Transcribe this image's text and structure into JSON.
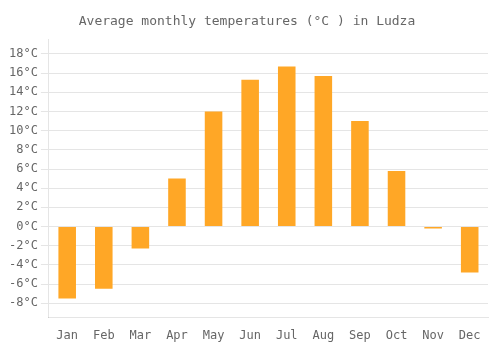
{
  "chart_data": {
    "type": "bar",
    "title": "Average monthly temperatures (°C ) in Ludza",
    "categories": [
      "Jan",
      "Feb",
      "Mar",
      "Apr",
      "May",
      "Jun",
      "Jul",
      "Aug",
      "Sep",
      "Oct",
      "Nov",
      "Dec"
    ],
    "values": [
      -7.5,
      -6.5,
      -2.3,
      5.0,
      12.0,
      15.3,
      16.7,
      15.7,
      11.0,
      5.8,
      -0.2,
      -4.8
    ],
    "color": "#FFA726",
    "ylim": [
      -9.5,
      19.5
    ],
    "yticks": [
      {
        "value": 18,
        "label": "18°C"
      },
      {
        "value": 16,
        "label": "16°C"
      },
      {
        "value": 14,
        "label": "14°C"
      },
      {
        "value": 12,
        "label": "12°C"
      },
      {
        "value": 10,
        "label": "10°C"
      },
      {
        "value": 8,
        "label": "8°C"
      },
      {
        "value": 6,
        "label": "6°C"
      },
      {
        "value": 4,
        "label": "4°C"
      },
      {
        "value": 2,
        "label": "2°C"
      },
      {
        "value": 0,
        "label": "0°C"
      },
      {
        "value": -2,
        "label": "-2°C"
      },
      {
        "value": -4,
        "label": "-4°C"
      },
      {
        "value": -6,
        "label": "-6°C"
      },
      {
        "value": -8,
        "label": "-8°C"
      }
    ],
    "grid": true
  }
}
